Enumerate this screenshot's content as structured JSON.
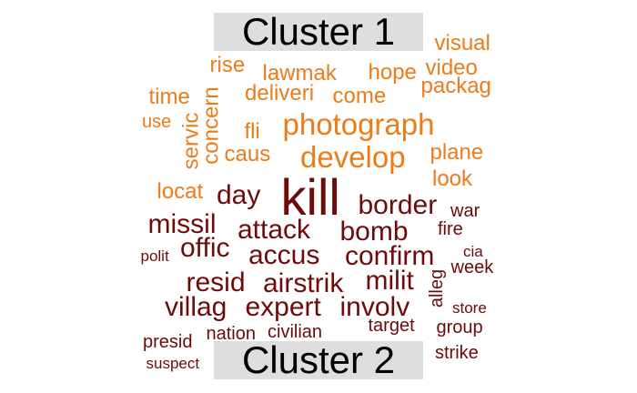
{
  "colors": {
    "cluster_1": "#ee7b19",
    "cluster_2": "#6e0a0a",
    "label_background": "#dedede",
    "label_text": "#000000"
  },
  "clusters": [
    {
      "id": "cluster-1",
      "label": "Cluster 1"
    },
    {
      "id": "cluster-2",
      "label": "Cluster 2"
    }
  ],
  "words": [
    {
      "text": "visual",
      "cluster": 1
    },
    {
      "text": "rise",
      "cluster": 1
    },
    {
      "text": "lawmak",
      "cluster": 1
    },
    {
      "text": "hope",
      "cluster": 1
    },
    {
      "text": "video",
      "cluster": 1
    },
    {
      "text": "time",
      "cluster": 1
    },
    {
      "text": "deliveri",
      "cluster": 1
    },
    {
      "text": "come",
      "cluster": 1
    },
    {
      "text": "packag",
      "cluster": 1
    },
    {
      "text": "use",
      "cluster": 1
    },
    {
      "text": "servic",
      "cluster": 1
    },
    {
      "text": "concern",
      "cluster": 1
    },
    {
      "text": "fli",
      "cluster": 1
    },
    {
      "text": "photograph",
      "cluster": 1
    },
    {
      "text": "caus",
      "cluster": 1
    },
    {
      "text": "develop",
      "cluster": 1
    },
    {
      "text": "plane",
      "cluster": 1
    },
    {
      "text": "look",
      "cluster": 1
    },
    {
      "text": "locat",
      "cluster": 1
    },
    {
      "text": "day",
      "cluster": 2
    },
    {
      "text": "kill",
      "cluster": 2
    },
    {
      "text": "border",
      "cluster": 2
    },
    {
      "text": "war",
      "cluster": 2
    },
    {
      "text": "missil",
      "cluster": 2
    },
    {
      "text": "attack",
      "cluster": 2
    },
    {
      "text": "bomb",
      "cluster": 2
    },
    {
      "text": "fire",
      "cluster": 2
    },
    {
      "text": "polit",
      "cluster": 2
    },
    {
      "text": "offic",
      "cluster": 2
    },
    {
      "text": "accus",
      "cluster": 2
    },
    {
      "text": "confirm",
      "cluster": 2
    },
    {
      "text": "cia",
      "cluster": 2
    },
    {
      "text": "week",
      "cluster": 2
    },
    {
      "text": "resid",
      "cluster": 2
    },
    {
      "text": "airstrik",
      "cluster": 2
    },
    {
      "text": "milit",
      "cluster": 2
    },
    {
      "text": "alleg",
      "cluster": 2
    },
    {
      "text": "villag",
      "cluster": 2
    },
    {
      "text": "expert",
      "cluster": 2
    },
    {
      "text": "involv",
      "cluster": 2
    },
    {
      "text": "store",
      "cluster": 2
    },
    {
      "text": "presid",
      "cluster": 2
    },
    {
      "text": "nation",
      "cluster": 2
    },
    {
      "text": "civilian",
      "cluster": 2
    },
    {
      "text": "target",
      "cluster": 2
    },
    {
      "text": "group",
      "cluster": 2
    },
    {
      "text": "suspect",
      "cluster": 2
    },
    {
      "text": "strike",
      "cluster": 2
    }
  ]
}
